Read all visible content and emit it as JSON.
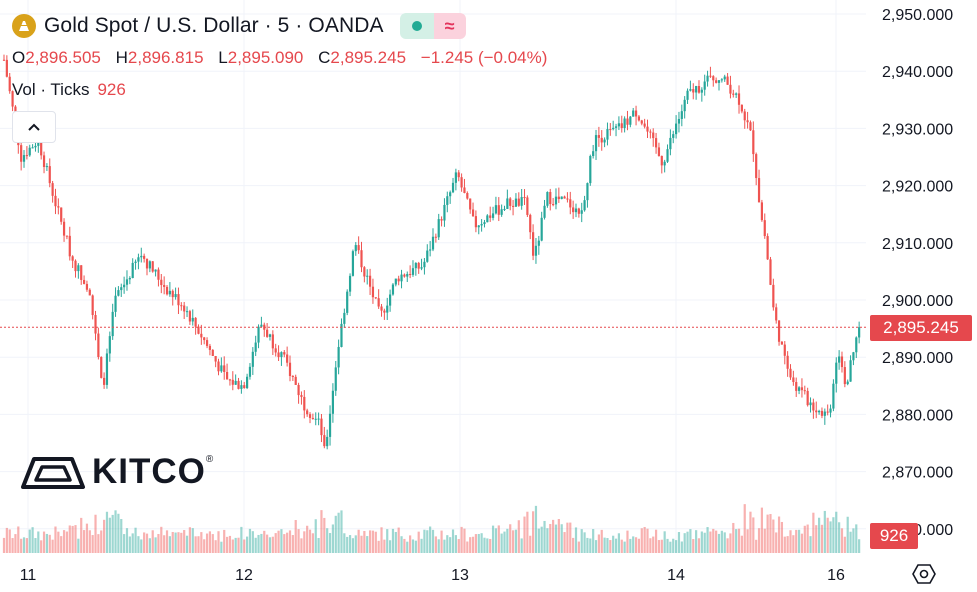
{
  "header": {
    "title": "Gold Spot / U.S. Dollar · 5 · OANDA",
    "ohlc": {
      "o_label": "O",
      "o_value": "2,896.505",
      "h_label": "H",
      "h_value": "2,896.815",
      "l_label": "L",
      "l_value": "2,895.090",
      "c_label": "C",
      "c_value": "2,895.245",
      "change": "−1.245 (−0.04%)"
    },
    "volume_label": "Vol · Ticks",
    "volume_value": "926",
    "collapse_icon": "chevron-up-icon",
    "status_icon": "market-dot-icon",
    "compare_icon": "approx-icon"
  },
  "watermark": {
    "text": "KITCO",
    "reg": "®"
  },
  "price_axis": {
    "labels": [
      "2,950.000",
      "2,940.000",
      "2,930.000",
      "2,920.000",
      "2,910.000",
      "2,900.000",
      "2,890.000",
      "2,880.000",
      "2,870.000",
      "2,860.000"
    ],
    "current_price": "2,895.245",
    "volume_tag": "926"
  },
  "time_axis": {
    "labels": [
      "11",
      "12",
      "13",
      "14",
      "16"
    ]
  },
  "colors": {
    "up": "#26a69a",
    "down": "#ef5350",
    "accent": "#e5484d",
    "grid": "#f0f3fa"
  },
  "chart_data": {
    "type": "candlestick",
    "title": "Gold Spot / U.S. Dollar · 5 · OANDA",
    "x_ticks": [
      "11",
      "12",
      "13",
      "14",
      "16"
    ],
    "ylim": [
      2860,
      2952
    ],
    "y_ticks": [
      2950,
      2940,
      2930,
      2920,
      2910,
      2900,
      2890,
      2880,
      2870,
      2860
    ],
    "last_price": 2895.245,
    "last_volume": 926,
    "price_path": [
      [
        0,
        2942
      ],
      [
        0.02,
        2925
      ],
      [
        0.04,
        2928
      ],
      [
        0.06,
        2917
      ],
      [
        0.08,
        2907
      ],
      [
        0.1,
        2902
      ],
      [
        0.115,
        2884
      ],
      [
        0.13,
        2900
      ],
      [
        0.16,
        2908
      ],
      [
        0.19,
        2902
      ],
      [
        0.21,
        2899
      ],
      [
        0.23,
        2894
      ],
      [
        0.26,
        2886
      ],
      [
        0.28,
        2885
      ],
      [
        0.3,
        2896
      ],
      [
        0.33,
        2889
      ],
      [
        0.35,
        2882
      ],
      [
        0.37,
        2878
      ],
      [
        0.375,
        2873
      ],
      [
        0.39,
        2891
      ],
      [
        0.41,
        2910
      ],
      [
        0.44,
        2897
      ],
      [
        0.46,
        2904
      ],
      [
        0.49,
        2906
      ],
      [
        0.51,
        2914
      ],
      [
        0.53,
        2922
      ],
      [
        0.55,
        2913
      ],
      [
        0.57,
        2915
      ],
      [
        0.59,
        2917
      ],
      [
        0.61,
        2917
      ],
      [
        0.62,
        2907
      ],
      [
        0.635,
        2918
      ],
      [
        0.66,
        2917
      ],
      [
        0.675,
        2915
      ],
      [
        0.69,
        2928
      ],
      [
        0.72,
        2930
      ],
      [
        0.74,
        2933
      ],
      [
        0.76,
        2927
      ],
      [
        0.77,
        2924
      ],
      [
        0.8,
        2936
      ],
      [
        0.83,
        2939
      ],
      [
        0.845,
        2938
      ],
      [
        0.86,
        2935
      ],
      [
        0.875,
        2928
      ],
      [
        0.885,
        2915
      ],
      [
        0.89,
        2911
      ],
      [
        0.9,
        2898
      ],
      [
        0.915,
        2888
      ],
      [
        0.93,
        2884
      ],
      [
        0.95,
        2881
      ],
      [
        0.965,
        2880
      ],
      [
        0.975,
        2892
      ],
      [
        0.985,
        2885
      ],
      [
        1.0,
        2895.245
      ]
    ]
  }
}
